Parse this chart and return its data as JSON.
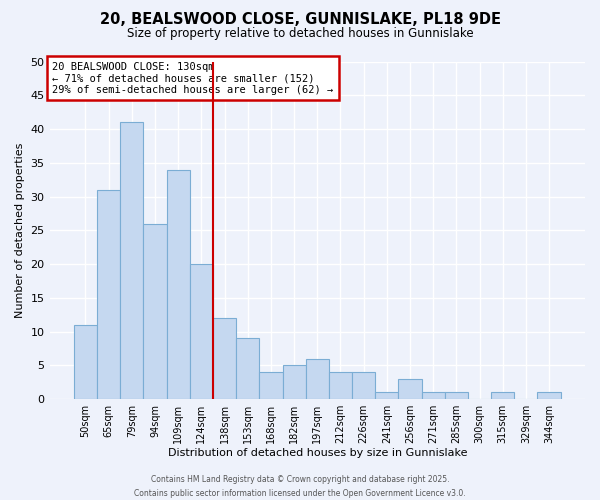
{
  "title": "20, BEALSWOOD CLOSE, GUNNISLAKE, PL18 9DE",
  "subtitle": "Size of property relative to detached houses in Gunnislake",
  "xlabel": "Distribution of detached houses by size in Gunnislake",
  "ylabel": "Number of detached properties",
  "bin_labels": [
    "50sqm",
    "65sqm",
    "79sqm",
    "94sqm",
    "109sqm",
    "124sqm",
    "138sqm",
    "153sqm",
    "168sqm",
    "182sqm",
    "197sqm",
    "212sqm",
    "226sqm",
    "241sqm",
    "256sqm",
    "271sqm",
    "285sqm",
    "300sqm",
    "315sqm",
    "329sqm",
    "344sqm"
  ],
  "bar_heights": [
    11,
    31,
    41,
    26,
    34,
    20,
    12,
    9,
    4,
    5,
    6,
    4,
    4,
    1,
    3,
    1,
    1,
    0,
    1,
    0,
    1
  ],
  "bar_color": "#c5d8f0",
  "bar_edge_color": "#7badd4",
  "background_color": "#eef2fb",
  "grid_color": "#ffffff",
  "vline_x": 5.5,
  "vline_color": "#cc0000",
  "annotation_text": "20 BEALSWOOD CLOSE: 130sqm\n← 71% of detached houses are smaller (152)\n29% of semi-detached houses are larger (62) →",
  "annotation_box_color": "#ffffff",
  "annotation_box_edge": "#cc0000",
  "ylim": [
    0,
    50
  ],
  "yticks": [
    0,
    5,
    10,
    15,
    20,
    25,
    30,
    35,
    40,
    45,
    50
  ],
  "footer_line1": "Contains HM Land Registry data © Crown copyright and database right 2025.",
  "footer_line2": "Contains public sector information licensed under the Open Government Licence v3.0."
}
